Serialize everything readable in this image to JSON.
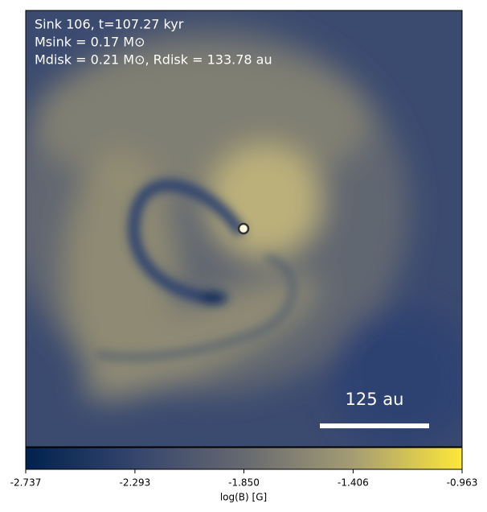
{
  "chart_data": {
    "type": "heatmap",
    "annotations": [
      "Sink 106, t=107.27 kyr",
      "Msink = 0.17 M⊙",
      "Mdisk = 0.21 M⊙, Rdisk = 133.78 au"
    ],
    "scale_bar_label": "125 au",
    "colorbar": {
      "label": "log(B) [G]",
      "lim": [
        -2.737,
        -0.963
      ],
      "ticks": [
        -2.737,
        -2.293,
        {
          "value": -1.85,
          "label": "-1.850"
        },
        -1.406,
        -0.963
      ],
      "colors": [
        "#00224e",
        "#35456c",
        "#666970",
        "#a59c74",
        "#fee838"
      ]
    }
  }
}
